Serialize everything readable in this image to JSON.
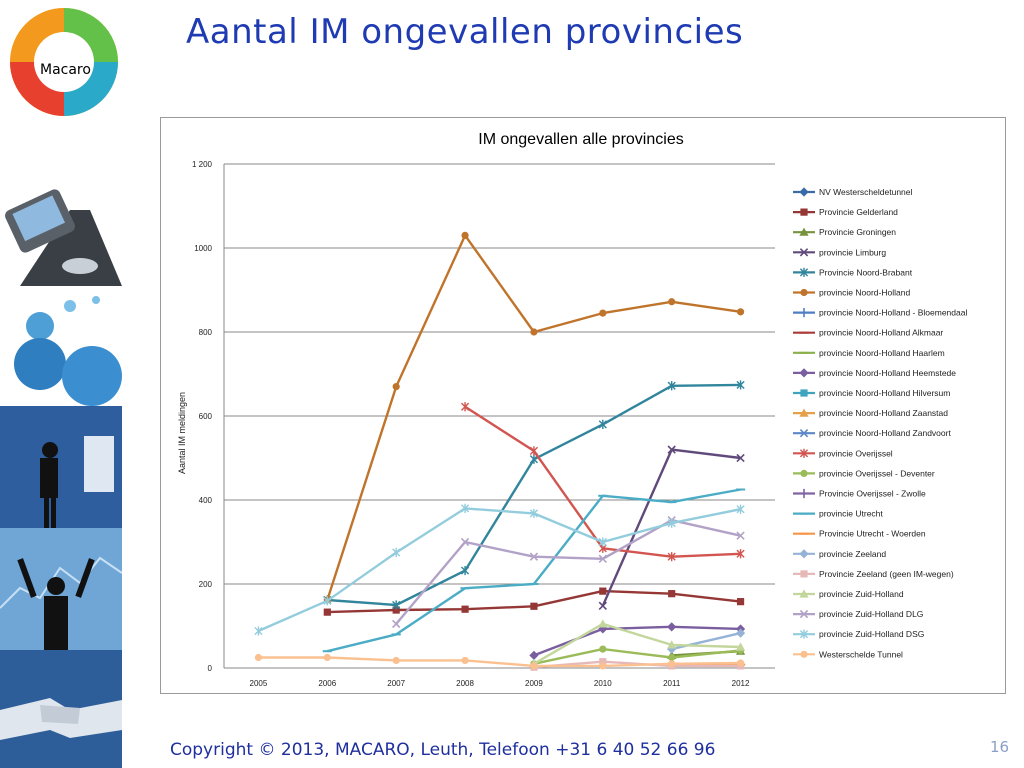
{
  "logo": {
    "text": "Macaro"
  },
  "title": "Aantal IM ongevallen provincies",
  "footer": "Copyright © 2013, MACARO, Leuth, Telefoon +31 6 40 52 66 96",
  "page_number": "16",
  "chart_data": {
    "type": "line",
    "title": "IM ongevallen alle provincies",
    "ylabel": "Aantal IM meldingen",
    "xlabel": "",
    "categories": [
      "2005",
      "2006",
      "2007",
      "2008",
      "2009",
      "2010",
      "2011",
      "2012"
    ],
    "ylim": [
      0,
      1200
    ],
    "yticks": [
      0,
      200,
      400,
      600,
      800,
      1000,
      1200
    ],
    "ytick_labels": [
      "0",
      "200",
      "400",
      "600",
      "800",
      "1000",
      "1 200"
    ],
    "grid": "horizontal",
    "legend_position": "right",
    "series": [
      {
        "name": "NV Westerscheldetunnel",
        "color": "#3a6aa8",
        "marker": "diamond",
        "values": [
          null,
          null,
          null,
          null,
          null,
          null,
          null,
          null
        ]
      },
      {
        "name": "Provincie Gelderland",
        "color": "#953735",
        "marker": "square",
        "values": [
          null,
          133,
          138,
          140,
          147,
          183,
          177,
          158
        ]
      },
      {
        "name": "Provincie Groningen",
        "color": "#77933c",
        "marker": "triangle",
        "values": [
          null,
          null,
          null,
          null,
          null,
          null,
          30,
          40
        ]
      },
      {
        "name": "provincie Limburg",
        "color": "#604a7b",
        "marker": "x",
        "values": [
          null,
          null,
          null,
          null,
          null,
          148,
          520,
          500
        ]
      },
      {
        "name": "Provincie Noord-Brabant",
        "color": "#31859c",
        "marker": "star",
        "values": [
          null,
          162,
          150,
          232,
          497,
          580,
          672,
          674
        ]
      },
      {
        "name": "provincie Noord-Holland",
        "color": "#c0742b",
        "marker": "circle",
        "values": [
          null,
          162,
          670,
          1030,
          800,
          845,
          872,
          848
        ]
      },
      {
        "name": "provincie Noord-Holland - Bloemendaal",
        "color": "#4f7fc2",
        "marker": "plus",
        "values": [
          null,
          null,
          null,
          null,
          null,
          null,
          null,
          null
        ]
      },
      {
        "name": "provincie Noord-Holland Alkmaar",
        "color": "#a83d3a",
        "marker": "dash",
        "values": [
          null,
          null,
          null,
          null,
          null,
          null,
          null,
          null
        ]
      },
      {
        "name": "provincie Noord-Holland Haarlem",
        "color": "#8ab04c",
        "marker": "dash",
        "values": [
          null,
          null,
          null,
          null,
          null,
          null,
          null,
          null
        ]
      },
      {
        "name": "provincie Noord-Holland Heemstede",
        "color": "#7a5ea0",
        "marker": "diamond",
        "values": [
          null,
          null,
          null,
          null,
          30,
          93,
          98,
          93
        ]
      },
      {
        "name": "provincie Noord-Holland Hilversum",
        "color": "#3fa4bd",
        "marker": "square",
        "values": [
          null,
          null,
          null,
          null,
          null,
          null,
          null,
          null
        ]
      },
      {
        "name": "provincie Noord-Holland Zaanstad",
        "color": "#e6a04a",
        "marker": "triangle",
        "values": [
          null,
          null,
          null,
          null,
          null,
          null,
          null,
          null
        ]
      },
      {
        "name": "provincie Noord-Holland Zandvoort",
        "color": "#5c86c8",
        "marker": "x",
        "values": [
          null,
          null,
          null,
          null,
          null,
          null,
          null,
          null
        ]
      },
      {
        "name": "provincie Overijssel",
        "color": "#d25550",
        "marker": "star",
        "values": [
          null,
          null,
          null,
          622,
          517,
          285,
          265,
          272
        ]
      },
      {
        "name": "provincie Overijssel - Deventer",
        "color": "#9bbb59",
        "marker": "circle",
        "values": [
          null,
          null,
          null,
          null,
          10,
          45,
          25,
          42
        ]
      },
      {
        "name": "Provincie Overijssel - Zwolle",
        "color": "#8064a2",
        "marker": "plus",
        "values": [
          null,
          null,
          null,
          null,
          null,
          null,
          null,
          null
        ]
      },
      {
        "name": "provincie Utrecht",
        "color": "#4bacc6",
        "marker": "dash",
        "values": [
          null,
          40,
          80,
          190,
          200,
          410,
          395,
          425
        ]
      },
      {
        "name": "Provincie Utrecht - Woerden",
        "color": "#f79646",
        "marker": "dash",
        "values": [
          null,
          null,
          null,
          null,
          null,
          null,
          10,
          8
        ]
      },
      {
        "name": "provincie Zeeland",
        "color": "#95b3d7",
        "marker": "diamond",
        "values": [
          null,
          null,
          null,
          null,
          null,
          null,
          45,
          83
        ]
      },
      {
        "name": "Provincie Zeeland (geen IM-wegen)",
        "color": "#e6b9b8",
        "marker": "square",
        "values": [
          null,
          null,
          null,
          null,
          2,
          15,
          5,
          5
        ]
      },
      {
        "name": "provincie Zuid-Holland",
        "color": "#c3d69b",
        "marker": "triangle",
        "values": [
          null,
          null,
          null,
          null,
          10,
          105,
          55,
          50
        ]
      },
      {
        "name": "provincie Zuid-Holland DLG",
        "color": "#b3a2c7",
        "marker": "x",
        "values": [
          null,
          null,
          105,
          300,
          265,
          260,
          352,
          315
        ]
      },
      {
        "name": "provincie Zuid-Holland DSG",
        "color": "#93cddd",
        "marker": "star",
        "values": [
          88,
          160,
          275,
          380,
          368,
          300,
          345,
          378
        ]
      },
      {
        "name": "Westerschelde Tunnel",
        "color": "#fac090",
        "marker": "circle",
        "values": [
          25,
          25,
          18,
          18,
          5,
          5,
          10,
          12
        ]
      }
    ]
  }
}
